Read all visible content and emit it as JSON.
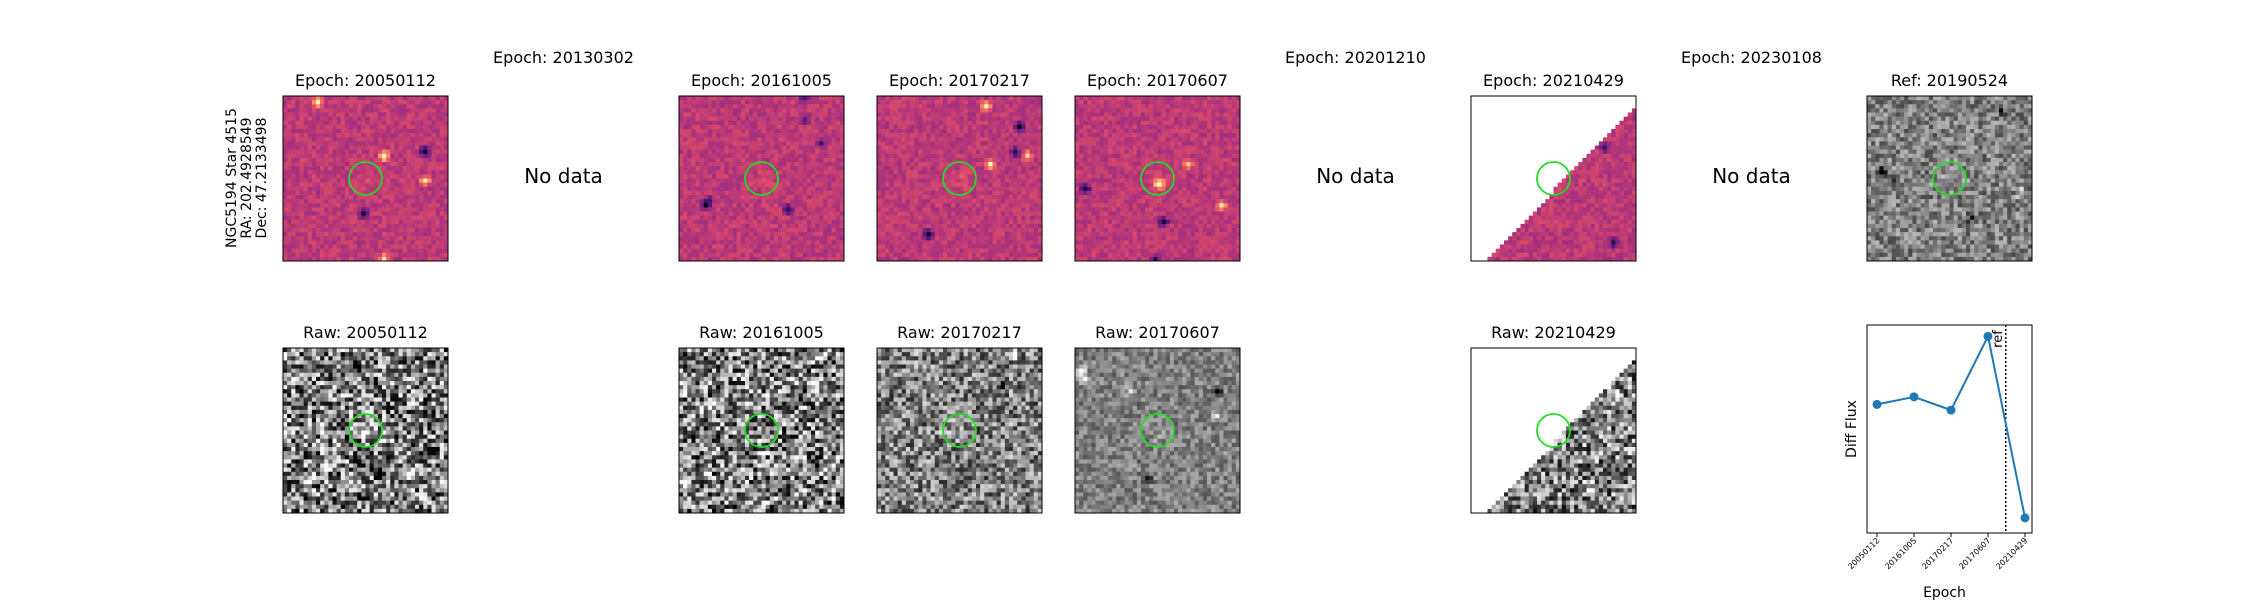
{
  "star_label": {
    "line1": "NGC5194 Star 4515",
    "line2": "RA: 202.4928549",
    "line3": "Dec: 47.2133498"
  },
  "no_data_text": "No data",
  "colors": {
    "diff_colormap": "magma",
    "raw_colormap": "gray",
    "circle": "#22dd22",
    "line": "#1f77b4",
    "no_coverage": "#ffffff"
  },
  "top_panels": [
    {
      "title": "Epoch: 20050112",
      "has_data": true
    },
    {
      "title": "Epoch: 20130302",
      "has_data": false
    },
    {
      "title": "Epoch: 20161005",
      "has_data": true
    },
    {
      "title": "Epoch: 20170217",
      "has_data": true
    },
    {
      "title": "Epoch: 20170607",
      "has_data": true
    },
    {
      "title": "Epoch: 20201210",
      "has_data": false
    },
    {
      "title": "Epoch: 20210429",
      "has_data": true,
      "partial_coverage": true
    },
    {
      "title": "Epoch: 20230108",
      "has_data": false
    },
    {
      "title": "Ref: 20190524",
      "has_data": true,
      "reference": true
    }
  ],
  "bottom_panels": [
    {
      "title": "Raw: 20050112"
    },
    {
      "title": "Raw: 20161005"
    },
    {
      "title": "Raw: 20170217"
    },
    {
      "title": "Raw: 20170607"
    },
    {
      "title": "Raw: 20210429",
      "partial_coverage": true
    }
  ],
  "chart_data": {
    "type": "line",
    "xlabel": "Epoch",
    "ylabel": "Diff Flux",
    "categories": [
      "20050112",
      "20161005",
      "20170217",
      "20170607",
      "20210429"
    ],
    "values": [
      0.58,
      0.62,
      0.55,
      0.94,
      -0.02
    ],
    "ylim": [
      -0.1,
      1.0
    ],
    "ref_line": {
      "label": "ref",
      "date": "20190524",
      "style": "dotted"
    },
    "markers": true
  }
}
